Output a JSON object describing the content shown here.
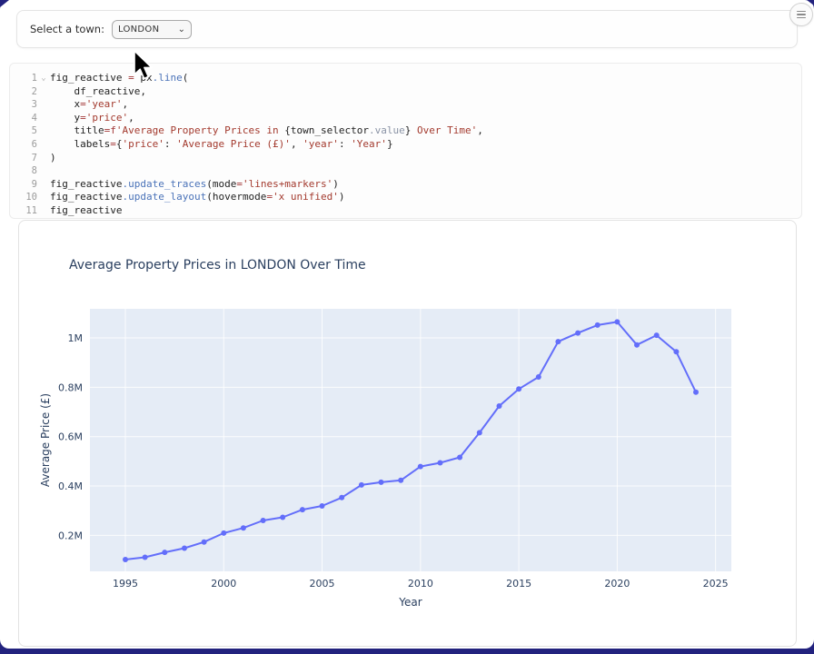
{
  "app": {
    "menu_button": {
      "icon": "hamburger-icon"
    }
  },
  "controls": {
    "label": "Select a town:",
    "selected_value": "LONDON",
    "chevron": "⌄"
  },
  "editor": {
    "fold_glyph": "⌄",
    "lines": [
      {
        "n": "1",
        "fold": true,
        "tokens": [
          [
            "d",
            "fig_reactive "
          ],
          [
            "o",
            "="
          ],
          [
            "d",
            " px"
          ],
          [
            "f",
            ".line"
          ],
          [
            "d",
            "("
          ]
        ]
      },
      {
        "n": "2",
        "fold": false,
        "tokens": [
          [
            "d",
            "    df_reactive,"
          ]
        ]
      },
      {
        "n": "3",
        "fold": false,
        "tokens": [
          [
            "d",
            "    x"
          ],
          [
            "o",
            "="
          ],
          [
            "s",
            "'year'"
          ],
          [
            "d",
            ","
          ]
        ]
      },
      {
        "n": "4",
        "fold": false,
        "tokens": [
          [
            "d",
            "    y"
          ],
          [
            "o",
            "="
          ],
          [
            "s",
            "'price'"
          ],
          [
            "d",
            ","
          ]
        ]
      },
      {
        "n": "5",
        "fold": false,
        "tokens": [
          [
            "d",
            "    title"
          ],
          [
            "o",
            "="
          ],
          [
            "o",
            "f"
          ],
          [
            "s",
            "'Average Property Prices in "
          ],
          [
            "d",
            "{town_selector"
          ],
          [
            "v",
            ".value"
          ],
          [
            "d",
            "}"
          ],
          [
            "s",
            " Over Time'"
          ],
          [
            "d",
            ","
          ]
        ]
      },
      {
        "n": "6",
        "fold": false,
        "tokens": [
          [
            "d",
            "    labels"
          ],
          [
            "o",
            "="
          ],
          [
            "d",
            "{"
          ],
          [
            "s",
            "'price'"
          ],
          [
            "d",
            ": "
          ],
          [
            "s",
            "'Average Price (£)'"
          ],
          [
            "d",
            ", "
          ],
          [
            "s",
            "'year'"
          ],
          [
            "d",
            ": "
          ],
          [
            "s",
            "'Year'"
          ],
          [
            "d",
            "}"
          ]
        ]
      },
      {
        "n": "7",
        "fold": false,
        "tokens": [
          [
            "d",
            ")"
          ]
        ]
      },
      {
        "n": "8",
        "fold": false,
        "tokens": []
      },
      {
        "n": "9",
        "fold": false,
        "tokens": [
          [
            "d",
            "fig_reactive"
          ],
          [
            "f",
            ".update_traces"
          ],
          [
            "d",
            "(mode"
          ],
          [
            "o",
            "="
          ],
          [
            "s",
            "'lines+markers'"
          ],
          [
            "d",
            ")"
          ]
        ]
      },
      {
        "n": "10",
        "fold": false,
        "tokens": [
          [
            "d",
            "fig_reactive"
          ],
          [
            "f",
            ".update_layout"
          ],
          [
            "d",
            "(hovermode"
          ],
          [
            "o",
            "="
          ],
          [
            "s",
            "'x unified'"
          ],
          [
            "d",
            ")"
          ]
        ]
      },
      {
        "n": "11",
        "fold": false,
        "tokens": [
          [
            "d",
            "fig_reactive"
          ]
        ]
      }
    ]
  },
  "chart_data": {
    "type": "line",
    "mode": "lines+markers",
    "title": "Average Property Prices in LONDON Over Time",
    "xlabel": "Year",
    "ylabel": "Average Price (£)",
    "x": [
      1995,
      1996,
      1997,
      1998,
      1999,
      2000,
      2001,
      2002,
      2003,
      2004,
      2005,
      2006,
      2007,
      2008,
      2009,
      2010,
      2011,
      2012,
      2013,
      2014,
      2015,
      2016,
      2017,
      2018,
      2019,
      2020,
      2021,
      2022,
      2023,
      2024
    ],
    "y": [
      102000,
      111000,
      131000,
      148000,
      173000,
      209000,
      230000,
      260000,
      273000,
      304000,
      319000,
      353000,
      404000,
      415000,
      423000,
      479000,
      494000,
      516000,
      616000,
      724000,
      793000,
      842000,
      985000,
      1020000,
      1052000,
      1065000,
      972000,
      1011000,
      944000,
      780000
    ],
    "x_ticks": [
      1995,
      2000,
      2005,
      2010,
      2015,
      2020,
      2025
    ],
    "y_ticks": [
      {
        "value": 200000,
        "label": "0.2M"
      },
      {
        "value": 400000,
        "label": "0.4M"
      },
      {
        "value": 600000,
        "label": "0.6M"
      },
      {
        "value": 800000,
        "label": "0.8M"
      },
      {
        "value": 1000000,
        "label": "1M"
      }
    ],
    "xlim": [
      1993.2,
      2025.8
    ],
    "ylim": [
      54000,
      1118000
    ],
    "grid": true,
    "legend": "none",
    "line_color": "#636efa",
    "plot_bg": "#e5ecf6",
    "text_color": "#2a3f5f",
    "grid_color": "#ffffff"
  }
}
